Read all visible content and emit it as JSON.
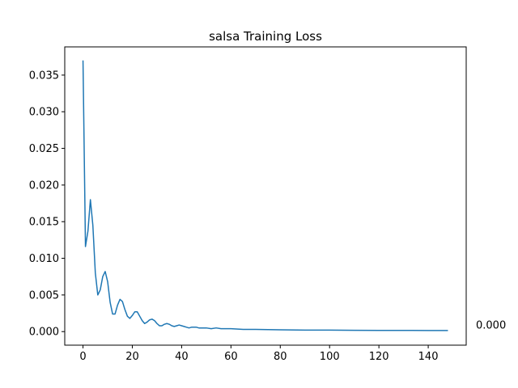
{
  "chart_data": {
    "type": "line",
    "title": "salsa Training Loss",
    "xlabel": "",
    "ylabel": "",
    "xlim": [
      -7.4,
      155.4
    ],
    "ylim": [
      -0.00185,
      0.03885
    ],
    "x_ticks": [
      0,
      20,
      40,
      60,
      80,
      100,
      120,
      140
    ],
    "y_ticks": [
      0.0,
      0.005,
      0.01,
      0.015,
      0.02,
      0.025,
      0.03,
      0.035
    ],
    "y_tick_labels": [
      "0.000",
      "0.005",
      "0.010",
      "0.015",
      "0.020",
      "0.025",
      "0.030",
      "0.035"
    ],
    "grid": false,
    "annotation": {
      "text": "0.000",
      "x": 148,
      "y": 0.0002
    },
    "series": [
      {
        "color": "#1f77b4",
        "points": [
          [
            0,
            0.037
          ],
          [
            1,
            0.0116
          ],
          [
            2,
            0.0137
          ],
          [
            3,
            0.018
          ],
          [
            4,
            0.0145
          ],
          [
            5,
            0.008
          ],
          [
            6,
            0.005
          ],
          [
            7,
            0.0057
          ],
          [
            8,
            0.0075
          ],
          [
            9,
            0.0082
          ],
          [
            10,
            0.0068
          ],
          [
            11,
            0.004
          ],
          [
            12,
            0.0024
          ],
          [
            13,
            0.0024
          ],
          [
            14,
            0.0036
          ],
          [
            15,
            0.0044
          ],
          [
            16,
            0.0041
          ],
          [
            17,
            0.003
          ],
          [
            18,
            0.0021
          ],
          [
            19,
            0.0018
          ],
          [
            20,
            0.0022
          ],
          [
            21,
            0.0027
          ],
          [
            22,
            0.0027
          ],
          [
            23,
            0.0021
          ],
          [
            24,
            0.0015
          ],
          [
            25,
            0.0011
          ],
          [
            26,
            0.0013
          ],
          [
            27,
            0.0016
          ],
          [
            28,
            0.0017
          ],
          [
            29,
            0.0015
          ],
          [
            30,
            0.0011
          ],
          [
            31,
            0.0008
          ],
          [
            32,
            0.0008
          ],
          [
            33,
            0.001
          ],
          [
            34,
            0.0011
          ],
          [
            35,
            0.001
          ],
          [
            36,
            0.0008
          ],
          [
            37,
            0.0007
          ],
          [
            38,
            0.0008
          ],
          [
            39,
            0.0009
          ],
          [
            40,
            0.0008
          ],
          [
            41,
            0.0007
          ],
          [
            42,
            0.0006
          ],
          [
            43,
            0.0005
          ],
          [
            44,
            0.0006
          ],
          [
            45,
            0.0006
          ],
          [
            46,
            0.0006
          ],
          [
            47,
            0.0005
          ],
          [
            48,
            0.0005
          ],
          [
            50,
            0.0005
          ],
          [
            52,
            0.0004
          ],
          [
            54,
            0.0005
          ],
          [
            56,
            0.0004
          ],
          [
            58,
            0.0004
          ],
          [
            60,
            0.0004
          ],
          [
            65,
            0.0003
          ],
          [
            70,
            0.0003
          ],
          [
            80,
            0.00025
          ],
          [
            90,
            0.0002
          ],
          [
            100,
            0.0002
          ],
          [
            110,
            0.00018
          ],
          [
            120,
            0.00017
          ],
          [
            130,
            0.00016
          ],
          [
            140,
            0.00015
          ],
          [
            148,
            0.00015
          ]
        ]
      }
    ]
  }
}
